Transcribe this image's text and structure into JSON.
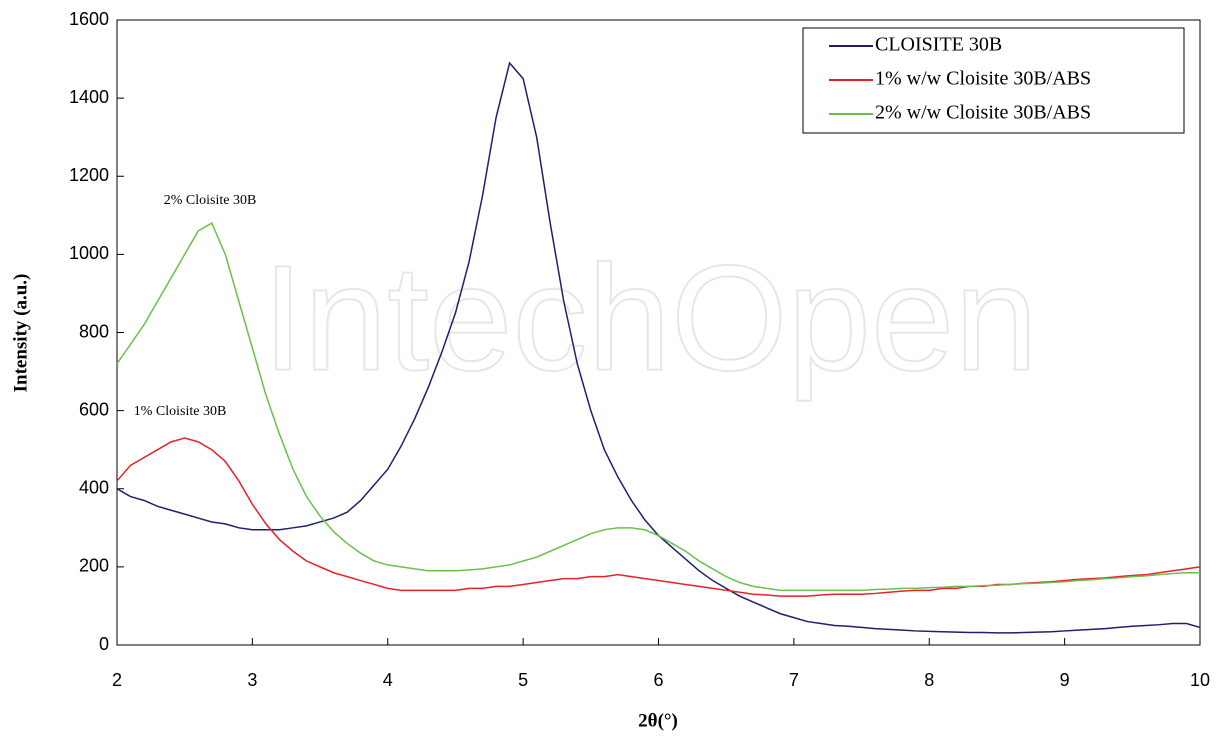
{
  "chart_data": {
    "type": "line",
    "xlabel": "2θ(°)",
    "ylabel": "Intensity (a.u.)",
    "watermark": "IntechOpen",
    "annotations": [
      "2% Cloisite 30B",
      "1% Cloisite 30B"
    ],
    "legend": "upper right",
    "xlim": [
      2,
      10
    ],
    "xticks": [
      2,
      3,
      4,
      5,
      6,
      7,
      8,
      9,
      10
    ],
    "ylim": [
      0,
      1600
    ],
    "yticks": [
      0,
      200,
      400,
      600,
      800,
      1000,
      1200,
      1400,
      1600
    ],
    "x": [
      2.0,
      2.1,
      2.2,
      2.3,
      2.4,
      2.5,
      2.6,
      2.7,
      2.8,
      2.9,
      3.0,
      3.1,
      3.2,
      3.3,
      3.4,
      3.5,
      3.6,
      3.7,
      3.8,
      3.9,
      4.0,
      4.1,
      4.2,
      4.3,
      4.4,
      4.5,
      4.6,
      4.7,
      4.8,
      4.9,
      5.0,
      5.1,
      5.2,
      5.3,
      5.4,
      5.5,
      5.6,
      5.7,
      5.8,
      5.9,
      6.0,
      6.1,
      6.2,
      6.3,
      6.4,
      6.5,
      6.6,
      6.7,
      6.8,
      6.9,
      7.0,
      7.1,
      7.2,
      7.3,
      7.4,
      7.5,
      7.6,
      7.7,
      7.8,
      7.9,
      8.0,
      8.1,
      8.2,
      8.3,
      8.4,
      8.5,
      8.6,
      8.7,
      8.8,
      8.9,
      9.0,
      9.1,
      9.2,
      9.3,
      9.4,
      9.5,
      9.6,
      9.7,
      9.8,
      9.9,
      10.0
    ],
    "series": [
      {
        "name": "CLOISITE 30B",
        "color": "#1f1f6e",
        "values": [
          400,
          380,
          370,
          355,
          345,
          335,
          325,
          315,
          310,
          300,
          295,
          295,
          295,
          300,
          305,
          315,
          325,
          340,
          370,
          410,
          450,
          510,
          580,
          660,
          750,
          850,
          980,
          1150,
          1350,
          1490,
          1450,
          1300,
          1080,
          880,
          720,
          600,
          500,
          430,
          370,
          320,
          280,
          250,
          220,
          190,
          165,
          145,
          125,
          110,
          95,
          80,
          70,
          60,
          55,
          50,
          48,
          45,
          42,
          40,
          38,
          36,
          35,
          34,
          33,
          32,
          32,
          31,
          31,
          32,
          33,
          34,
          36,
          38,
          40,
          42,
          45,
          48,
          50,
          52,
          55,
          55,
          45
        ]
      },
      {
        "name": "1% w/w Cloisite 30B/ABS",
        "color": "#e8202a",
        "values": [
          420,
          460,
          480,
          500,
          520,
          530,
          520,
          500,
          470,
          420,
          360,
          310,
          270,
          240,
          215,
          200,
          185,
          175,
          165,
          155,
          145,
          140,
          140,
          140,
          140,
          140,
          145,
          145,
          150,
          150,
          155,
          160,
          165,
          170,
          170,
          175,
          175,
          180,
          175,
          170,
          165,
          160,
          155,
          150,
          145,
          140,
          135,
          130,
          128,
          125,
          125,
          125,
          128,
          130,
          130,
          130,
          132,
          135,
          138,
          140,
          140,
          145,
          145,
          150,
          150,
          155,
          155,
          158,
          160,
          162,
          165,
          168,
          170,
          172,
          175,
          178,
          180,
          185,
          190,
          195,
          200
        ]
      },
      {
        "name": "2% w/w Cloisite 30B/ABS",
        "color": "#6cc04a",
        "values": [
          720,
          770,
          820,
          880,
          940,
          1000,
          1060,
          1080,
          1000,
          880,
          760,
          640,
          540,
          450,
          380,
          330,
          290,
          260,
          235,
          215,
          205,
          200,
          195,
          190,
          190,
          190,
          192,
          195,
          200,
          205,
          215,
          225,
          240,
          255,
          270,
          285,
          295,
          300,
          300,
          295,
          280,
          260,
          240,
          215,
          195,
          175,
          160,
          150,
          145,
          140,
          140,
          140,
          140,
          140,
          140,
          140,
          142,
          143,
          145,
          145,
          147,
          148,
          150,
          150,
          152,
          153,
          155,
          157,
          158,
          160,
          162,
          165,
          167,
          170,
          172,
          175,
          177,
          180,
          183,
          185,
          185
        ]
      }
    ]
  }
}
